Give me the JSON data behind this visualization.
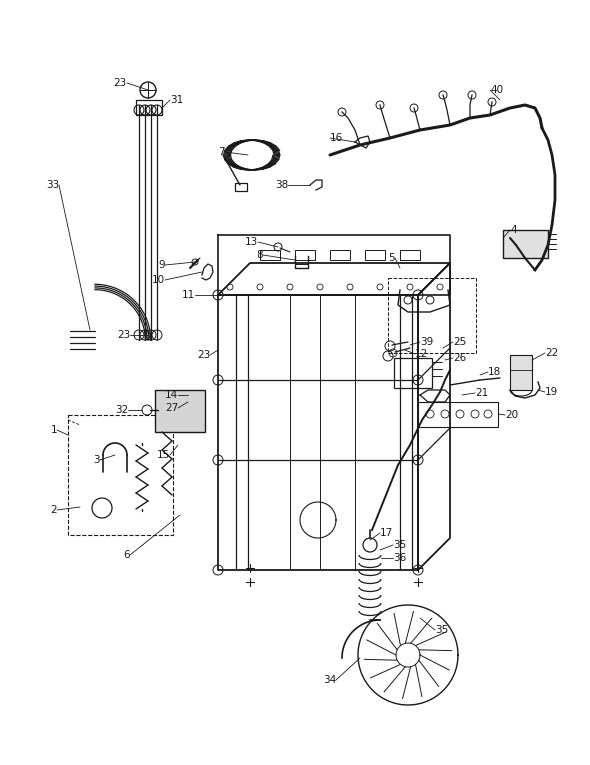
{
  "bg_color": "#ffffff",
  "line_color": "#1a1a1a",
  "fig_width": 5.9,
  "fig_height": 7.65,
  "dpi": 100
}
